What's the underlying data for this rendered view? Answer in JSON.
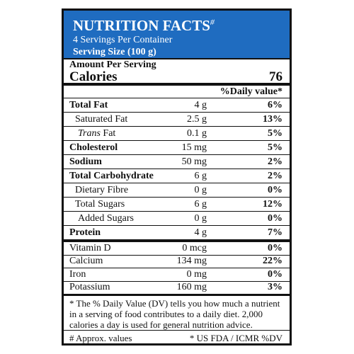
{
  "header": {
    "title": "NUTRITION FACTS",
    "title_mark": "#",
    "servings": "4 Servings Per Container",
    "serving_size": "Serving Size (100 g)"
  },
  "calories": {
    "heading": "Amount Per Serving",
    "label": "Calories",
    "value": 76
  },
  "dv_heading": "%Daily value*",
  "nutrients": [
    {
      "name": "Total Fat",
      "amount": "4 g",
      "dv": "6%"
    },
    {
      "name": "Saturated Fat",
      "amount": "2.5 g",
      "dv": "13%"
    },
    {
      "prefix": "Trans",
      "name": "Fat",
      "amount": "0.1 g",
      "dv": "5%"
    },
    {
      "name": "Cholesterol",
      "amount": "15 mg",
      "dv": "5%"
    },
    {
      "name": "Sodium",
      "amount": "50 mg",
      "dv": "2%"
    },
    {
      "name": "Total Carbohydrate",
      "amount": "6 g",
      "dv": "2%"
    },
    {
      "name": "Dietary Fibre",
      "amount": "0 g",
      "dv": "0%"
    },
    {
      "name": "Total Sugars",
      "amount": "6 g",
      "dv": "12%"
    },
    {
      "name": "Added Sugars",
      "amount": "0 g",
      "dv": "0%"
    },
    {
      "name": "Protein",
      "amount": "4 g",
      "dv": "7%"
    }
  ],
  "vitamins": [
    {
      "name": "Vitamin D",
      "amount": "0 mcg",
      "dv": "0%"
    },
    {
      "name": "Calcium",
      "amount": "134 mg",
      "dv": "22%"
    },
    {
      "name": "Iron",
      "amount": "0 mg",
      "dv": "0%"
    },
    {
      "name": "Potassium",
      "amount": "160 mg",
      "dv": "3%"
    }
  ],
  "footnote": "* The % Daily Value (DV) tells you how much a nutrient in a serving of food contributes to a daily diet. 2,000 calories a day is used for general nutrition advice.",
  "footer": {
    "left": "# Approx. values",
    "right": "* US FDA / ICMR %DV"
  }
}
